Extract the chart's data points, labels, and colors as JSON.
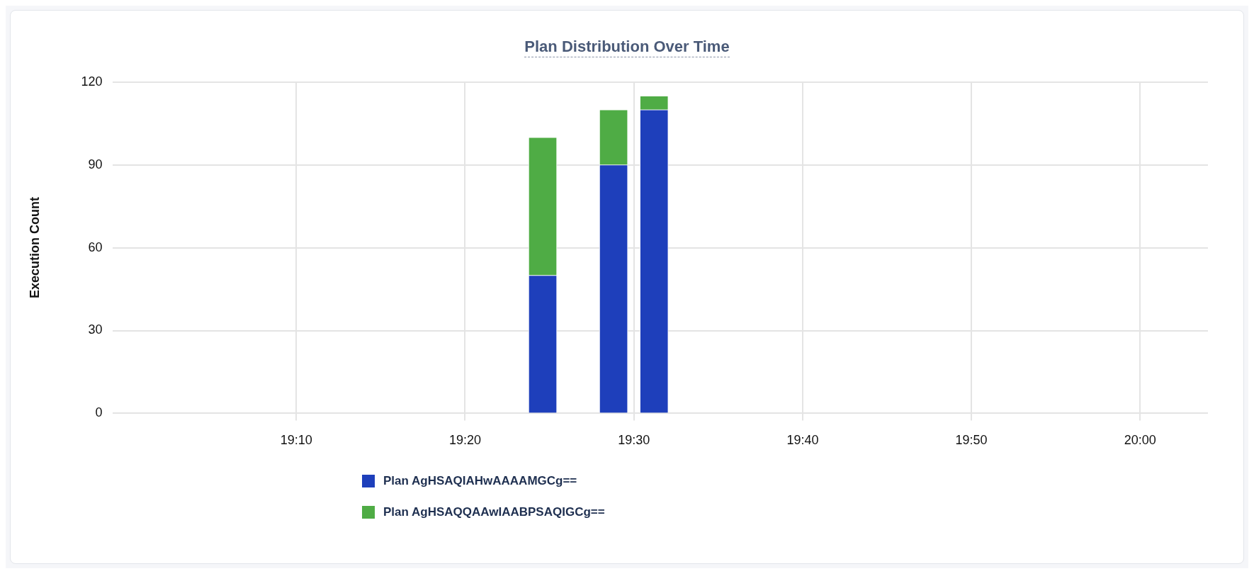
{
  "chart_data": {
    "type": "bar",
    "title": "Plan Distribution Over Time",
    "ylabel": "Execution Count",
    "stacked": true,
    "x": [
      19.41,
      19.48,
      19.52
    ],
    "series": [
      {
        "name": "Plan AgHSAQIAHwAAAAMGCg==",
        "color": "#1e3fbb",
        "values": [
          50,
          90,
          110
        ]
      },
      {
        "name": "Plan AgHSAQQAAwIAABPSAQIGCg==",
        "color": "#4fac45",
        "values": [
          50,
          20,
          5
        ]
      }
    ],
    "xlim": [
      18.985,
      20.067
    ],
    "xticks": [
      {
        "value": 19.1667,
        "label": "19:10"
      },
      {
        "value": 19.3333,
        "label": "19:20"
      },
      {
        "value": 19.5,
        "label": "19:30"
      },
      {
        "value": 19.6667,
        "label": "19:40"
      },
      {
        "value": 19.8333,
        "label": "19:50"
      },
      {
        "value": 20,
        "label": "20:00"
      }
    ],
    "ylim": [
      0,
      120
    ],
    "yticks": [
      0,
      30,
      60,
      90,
      120
    ],
    "grid": true,
    "legend": "bottom"
  }
}
